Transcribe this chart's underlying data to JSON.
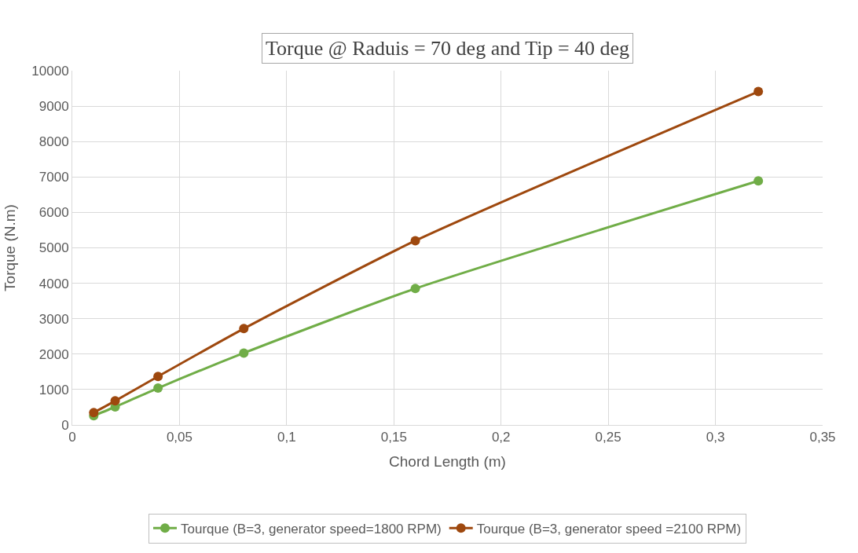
{
  "chart_data": {
    "type": "line",
    "title": "Torque @ Raduis = 70 deg and Tip = 40 deg",
    "xlabel": "Chord Length (m)",
    "ylabel": "Torque (N.m)",
    "x": [
      0.01,
      0.02,
      0.04,
      0.08,
      0.16,
      0.32
    ],
    "series": [
      {
        "name": "Tourque (B=3, generator speed=1800 RPM)",
        "color": "#70ad47",
        "values": [
          260,
          510,
          1040,
          2030,
          3850,
          6890
        ]
      },
      {
        "name": "Tourque (B=3, generator speed =2100 RPM)",
        "color": "#9e480e",
        "values": [
          350,
          680,
          1370,
          2720,
          5200,
          9410
        ]
      }
    ],
    "xlim": [
      0,
      0.35
    ],
    "xticks": [
      0,
      {
        "value": 0.05,
        "label": "0,05"
      },
      {
        "value": 0.1,
        "label": "0,1"
      },
      {
        "value": 0.15,
        "label": "0,15"
      },
      {
        "value": 0.2,
        "label": "0,2"
      },
      {
        "value": 0.25,
        "label": "0,25"
      },
      {
        "value": 0.3,
        "label": "0,3"
      },
      {
        "value": 0.35,
        "label": "0,35"
      }
    ],
    "ylim": [
      0,
      10000
    ],
    "yticks": [
      0,
      1000,
      2000,
      3000,
      4000,
      5000,
      6000,
      7000,
      8000,
      9000,
      10000
    ],
    "grid": true,
    "legend": "bottom",
    "marker": "circle",
    "line_style": "solid"
  }
}
